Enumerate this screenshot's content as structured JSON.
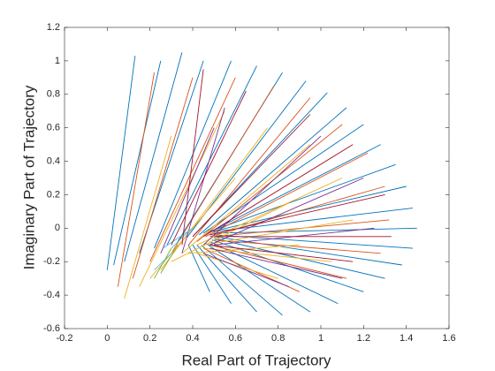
{
  "chart_data": {
    "type": "line",
    "xlabel": "Real Part of Trajectory",
    "ylabel": "Imaginary Part of Trajectory",
    "xlim": [
      -0.2,
      1.6
    ],
    "ylim": [
      -0.6,
      1.2
    ],
    "xticks": [
      -0.2,
      0,
      0.2,
      0.4,
      0.6,
      0.8,
      1,
      1.2,
      1.4,
      1.6
    ],
    "yticks": [
      -0.6,
      -0.4,
      -0.2,
      0,
      0.2,
      0.4,
      0.6,
      0.8,
      1,
      1.2
    ],
    "grid": false,
    "series": [
      {
        "color": "#0072BD",
        "x": [
          0.0,
          0.13,
          null,
          0.03,
          0.25,
          null,
          0.08,
          0.35,
          null,
          0.15,
          0.45,
          null,
          0.22,
          0.58,
          null,
          0.28,
          0.7,
          null,
          0.33,
          0.82,
          null,
          0.37,
          0.93,
          null,
          0.4,
          1.03,
          null,
          0.43,
          1.12,
          null,
          0.45,
          1.2,
          null,
          0.47,
          1.28,
          null,
          0.48,
          1.35,
          null,
          0.49,
          1.4,
          null,
          0.5,
          1.43,
          null,
          0.5,
          1.45,
          null,
          0.5,
          1.43,
          null,
          0.5,
          1.38,
          null,
          0.5,
          1.3,
          null,
          0.49,
          1.2,
          null,
          0.48,
          1.08,
          null,
          0.46,
          0.95,
          null,
          0.44,
          0.82,
          null,
          0.42,
          0.7,
          null,
          0.4,
          0.58,
          null,
          0.38,
          0.48
        ],
        "y": [
          -0.25,
          1.03,
          null,
          -0.22,
          1.0,
          null,
          -0.2,
          1.05,
          null,
          -0.15,
          1.0,
          null,
          -0.12,
          1.0,
          null,
          -0.1,
          0.97,
          null,
          -0.08,
          0.93,
          null,
          -0.06,
          0.88,
          null,
          -0.05,
          0.81,
          null,
          -0.04,
          0.72,
          null,
          -0.03,
          0.62,
          null,
          -0.03,
          0.5,
          null,
          -0.02,
          0.38,
          null,
          -0.02,
          0.25,
          null,
          -0.02,
          0.12,
          null,
          -0.03,
          0.0,
          null,
          -0.04,
          -0.12,
          null,
          -0.05,
          -0.22,
          null,
          -0.06,
          -0.3,
          null,
          -0.07,
          -0.38,
          null,
          -0.08,
          -0.45,
          null,
          -0.09,
          -0.5,
          null,
          -0.1,
          -0.52,
          null,
          -0.1,
          -0.5,
          null,
          -0.1,
          -0.45,
          null,
          -0.1,
          -0.38
        ]
      },
      {
        "color": "#D95319",
        "x": [
          0.05,
          0.22,
          null,
          0.12,
          0.4,
          null,
          0.2,
          0.6,
          null,
          0.3,
          0.78,
          null,
          0.38,
          0.95,
          null,
          0.42,
          1.1,
          null,
          0.46,
          1.22,
          null,
          0.48,
          1.3,
          null,
          0.5,
          1.32,
          null,
          0.5,
          1.28,
          null,
          0.48,
          1.12,
          null,
          0.45,
          0.9
        ],
        "y": [
          -0.35,
          0.93,
          null,
          -0.3,
          0.9,
          null,
          -0.2,
          0.9,
          null,
          -0.15,
          0.85,
          null,
          -0.1,
          0.78,
          null,
          -0.08,
          0.62,
          null,
          -0.05,
          0.45,
          null,
          -0.05,
          0.25,
          null,
          -0.05,
          0.05,
          null,
          -0.07,
          -0.15,
          null,
          -0.1,
          -0.3,
          null,
          -0.12,
          -0.38
        ]
      },
      {
        "color": "#EDB120",
        "x": [
          0.08,
          0.3,
          null,
          0.15,
          0.55,
          null,
          0.25,
          0.75,
          null,
          0.35,
          0.95,
          null,
          0.42,
          1.1,
          null,
          0.45,
          1.15,
          null,
          0.45,
          1.05,
          null,
          0.42,
          0.8,
          null,
          0.2,
          0.6,
          null,
          0.3,
          0.85,
          null,
          0.38,
          0.9
        ],
        "y": [
          -0.42,
          0.55,
          null,
          -0.35,
          0.7,
          null,
          -0.25,
          0.6,
          null,
          -0.15,
          0.5,
          null,
          -0.1,
          0.3,
          null,
          -0.1,
          0.05,
          null,
          -0.12,
          -0.2,
          null,
          -0.15,
          -0.3,
          null,
          -0.3,
          0.3,
          null,
          -0.2,
          0.15,
          null,
          -0.15,
          -0.1
        ]
      },
      {
        "color": "#7E2F8E",
        "x": [
          0.35,
          0.55,
          null,
          0.45,
          1.0,
          null,
          0.48,
          1.2,
          null,
          0.5,
          1.25,
          null,
          0.48,
          1.1,
          null,
          0.45,
          0.85,
          null,
          0.25,
          0.5
        ],
        "y": [
          -0.15,
          0.72,
          null,
          -0.1,
          0.55,
          null,
          -0.1,
          0.3,
          null,
          -0.1,
          0.0,
          null,
          -0.12,
          -0.3,
          null,
          -0.15,
          -0.35,
          null,
          -0.15,
          0.6
        ]
      },
      {
        "color": "#77AC30",
        "x": [
          0.22,
          0.3,
          null,
          0.25,
          0.33
        ],
        "y": [
          -0.3,
          -0.12,
          null,
          -0.27,
          -0.1
        ]
      },
      {
        "color": "#4DBEEE",
        "x": [
          0.3,
          0.38,
          null,
          0.3,
          0.22,
          null,
          0.26,
          0.4
        ],
        "y": [
          -0.12,
          -0.02,
          null,
          -0.15,
          -0.25,
          null,
          -0.12,
          0.0
        ]
      },
      {
        "color": "#A2142F",
        "x": [
          0.3,
          0.65,
          null,
          0.4,
          0.95,
          null,
          0.45,
          1.15,
          null,
          0.48,
          1.3,
          null,
          0.5,
          1.33,
          null,
          0.48,
          1.15,
          null,
          0.35,
          0.45
        ],
        "y": [
          -0.1,
          0.82,
          null,
          -0.05,
          0.68,
          null,
          -0.05,
          0.5,
          null,
          -0.04,
          0.2,
          null,
          -0.05,
          -0.05,
          null,
          -0.1,
          -0.2,
          null,
          -0.1,
          0.95
        ]
      }
    ]
  }
}
